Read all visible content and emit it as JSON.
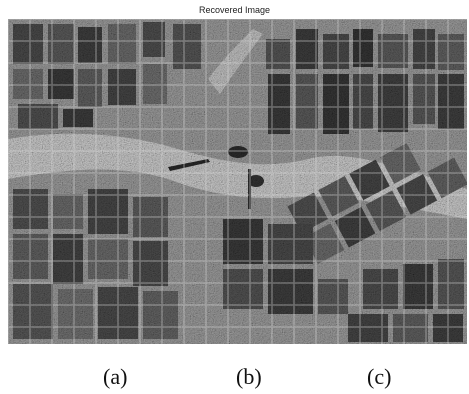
{
  "figure": {
    "title": "Recovered Image",
    "image_description": "grayscale speckled satellite/SAR image of agricultural field parcels with a river-like bright band",
    "captions": [
      "(a)",
      "(b)",
      "(c)"
    ]
  },
  "colors": {
    "background": "#ffffff",
    "text": "#111111"
  }
}
